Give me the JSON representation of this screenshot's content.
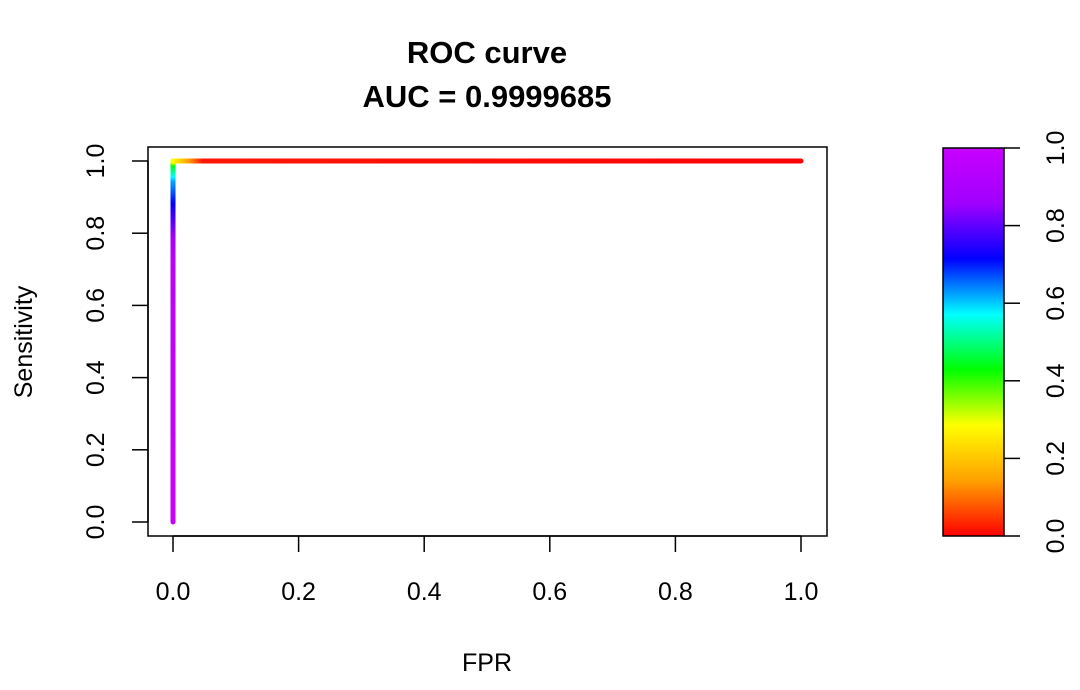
{
  "chart_data": {
    "type": "line",
    "title": "ROC curve",
    "subtitle": "AUC = 0.9999685",
    "xlabel": "FPR",
    "ylabel": "Sensitivity",
    "xlim": [
      0,
      1
    ],
    "ylim": [
      0,
      1
    ],
    "x_ticks": [
      "0.0",
      "0.2",
      "0.4",
      "0.6",
      "0.8",
      "1.0"
    ],
    "y_ticks": [
      "0.0",
      "0.2",
      "0.4",
      "0.6",
      "0.8",
      "1.0"
    ],
    "grid": false,
    "series": [
      {
        "points": [
          {
            "x": 0.0,
            "y": 0.0,
            "threshold": 1.0
          },
          {
            "x": 0.0,
            "y": 0.73,
            "threshold": 0.95
          },
          {
            "x": 0.0,
            "y": 0.82,
            "threshold": 0.82
          },
          {
            "x": 0.0,
            "y": 0.95,
            "threshold": 0.62
          },
          {
            "x": 0.0,
            "y": 0.99,
            "threshold": 0.45
          },
          {
            "x": 0.0,
            "y": 1.0,
            "threshold": 0.3
          },
          {
            "x": 0.05,
            "y": 1.0,
            "threshold": 0.02
          },
          {
            "x": 1.0,
            "y": 1.0,
            "threshold": 0.0
          }
        ]
      }
    ],
    "colorbar": {
      "range": [
        0,
        1
      ],
      "ticks": [
        "0.0",
        "0.2",
        "0.4",
        "0.6",
        "0.8",
        "1.0"
      ],
      "palette": [
        "#ff0000",
        "#ffa000",
        "#ffff00",
        "#00ff00",
        "#00ffff",
        "#0000ff",
        "#a000ff",
        "#c800ff"
      ]
    }
  }
}
